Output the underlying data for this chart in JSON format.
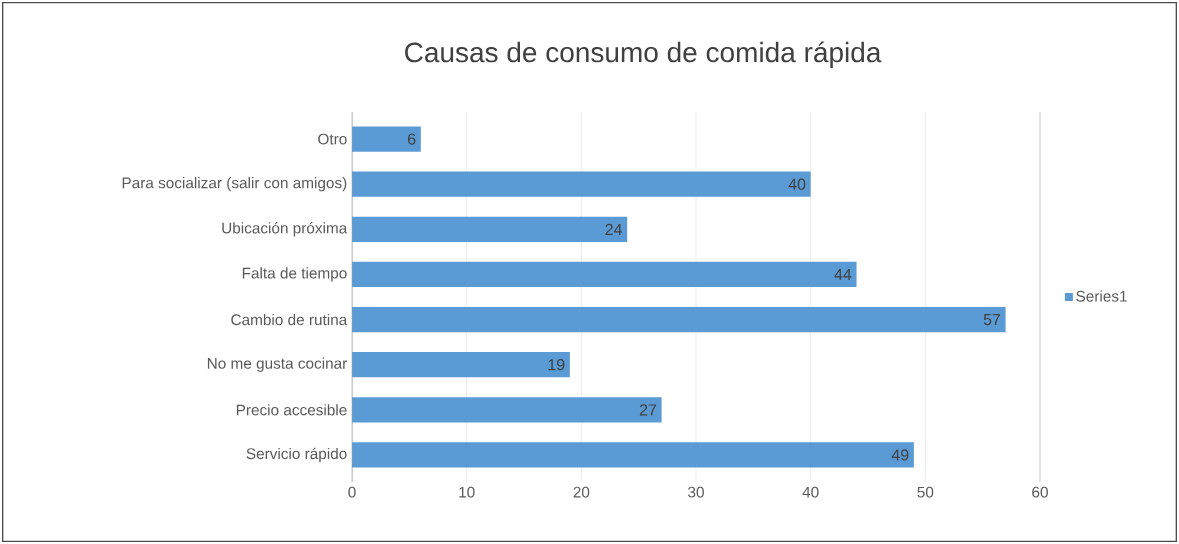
{
  "chart_data": {
    "type": "bar",
    "orientation": "horizontal",
    "title": "Causas de consumo de comida rápida",
    "categories": [
      "Otro",
      "Para socializar (salir con amigos)",
      "Ubicación próxima",
      "Falta de tiempo",
      "Cambio de rutina",
      "No me gusta cocinar",
      "Precio accesible",
      "Servicio rápido"
    ],
    "series": [
      {
        "name": "Series1",
        "color": "#5b9bd5",
        "values": [
          6,
          40,
          24,
          44,
          57,
          19,
          27,
          49
        ]
      }
    ],
    "xlim": [
      0,
      60
    ],
    "xticks": [
      0,
      10,
      20,
      30,
      40,
      50,
      60
    ],
    "grid": "x",
    "legend": "right",
    "data_labels": true
  }
}
